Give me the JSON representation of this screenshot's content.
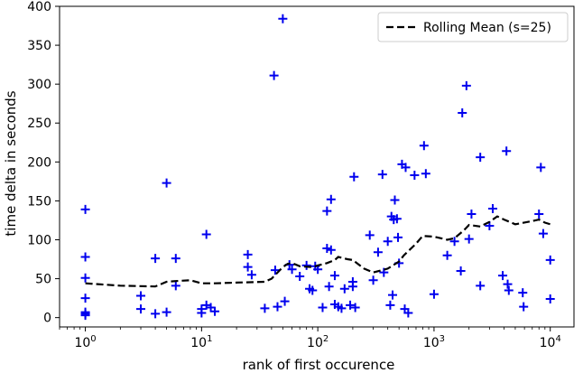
{
  "chart_data": {
    "type": "scatter",
    "title": "",
    "xlabel": "rank of first occurence",
    "ylabel": "time delta in seconds",
    "xscale": "log",
    "xlim": [
      0.6,
      16000
    ],
    "ylim": [
      -12,
      400
    ],
    "grid": false,
    "legend_position": "top-right",
    "x_ticks": [
      {
        "value": 1,
        "base": "10",
        "exp": "0"
      },
      {
        "value": 10,
        "base": "10",
        "exp": "1"
      },
      {
        "value": 100,
        "base": "10",
        "exp": "2"
      },
      {
        "value": 1000,
        "base": "10",
        "exp": "3"
      },
      {
        "value": 10000,
        "base": "10",
        "exp": "4"
      }
    ],
    "y_ticks": [
      0,
      50,
      100,
      150,
      200,
      250,
      300,
      350,
      400
    ],
    "series": [
      {
        "kind": "scatter",
        "marker": "+",
        "color": "#0000ee",
        "points": [
          [
            1,
            139
          ],
          [
            1,
            78
          ],
          [
            1,
            51
          ],
          [
            1,
            25
          ],
          [
            1,
            7
          ],
          [
            1,
            5
          ],
          [
            1,
            3
          ],
          [
            3,
            28
          ],
          [
            3,
            11
          ],
          [
            4,
            76
          ],
          [
            4,
            5
          ],
          [
            5,
            173
          ],
          [
            5,
            7
          ],
          [
            6,
            76
          ],
          [
            6,
            41
          ],
          [
            10,
            11
          ],
          [
            10,
            6
          ],
          [
            11,
            107
          ],
          [
            11,
            16
          ],
          [
            12,
            13
          ],
          [
            13,
            8
          ],
          [
            25,
            81
          ],
          [
            25,
            65
          ],
          [
            27,
            55
          ],
          [
            35,
            12
          ],
          [
            42,
            311
          ],
          [
            43,
            61
          ],
          [
            45,
            14
          ],
          [
            50,
            384
          ],
          [
            52,
            21
          ],
          [
            57,
            68
          ],
          [
            60,
            62
          ],
          [
            70,
            53
          ],
          [
            80,
            67
          ],
          [
            85,
            37
          ],
          [
            90,
            35
          ],
          [
            95,
            66
          ],
          [
            100,
            62
          ],
          [
            110,
            13
          ],
          [
            120,
            137
          ],
          [
            120,
            89
          ],
          [
            125,
            40
          ],
          [
            130,
            152
          ],
          [
            130,
            87
          ],
          [
            140,
            54
          ],
          [
            140,
            17
          ],
          [
            150,
            14
          ],
          [
            160,
            12
          ],
          [
            170,
            37
          ],
          [
            190,
            16
          ],
          [
            200,
            46
          ],
          [
            200,
            40
          ],
          [
            205,
            181
          ],
          [
            210,
            13
          ],
          [
            280,
            106
          ],
          [
            300,
            48
          ],
          [
            330,
            84
          ],
          [
            360,
            184
          ],
          [
            370,
            58
          ],
          [
            400,
            98
          ],
          [
            420,
            16
          ],
          [
            430,
            130
          ],
          [
            440,
            29
          ],
          [
            450,
            126
          ],
          [
            460,
            151
          ],
          [
            480,
            127
          ],
          [
            490,
            103
          ],
          [
            500,
            70
          ],
          [
            530,
            197
          ],
          [
            560,
            11
          ],
          [
            570,
            193
          ],
          [
            600,
            6
          ],
          [
            680,
            183
          ],
          [
            820,
            221
          ],
          [
            850,
            185
          ],
          [
            1000,
            30
          ],
          [
            1300,
            80
          ],
          [
            1500,
            98
          ],
          [
            1700,
            60
          ],
          [
            1750,
            263
          ],
          [
            1900,
            298
          ],
          [
            2000,
            101
          ],
          [
            2100,
            133
          ],
          [
            2500,
            206
          ],
          [
            2500,
            41
          ],
          [
            3000,
            118
          ],
          [
            3200,
            140
          ],
          [
            3900,
            54
          ],
          [
            4200,
            214
          ],
          [
            4300,
            43
          ],
          [
            4400,
            35
          ],
          [
            5800,
            32
          ],
          [
            5900,
            14
          ],
          [
            8000,
            133
          ],
          [
            8300,
            193
          ],
          [
            8700,
            108
          ],
          [
            10000,
            74
          ],
          [
            10000,
            24
          ]
        ]
      },
      {
        "kind": "line",
        "name": "Rolling Mean (s=25)",
        "style": "dashed",
        "color": "#000000",
        "points": [
          [
            1,
            44
          ],
          [
            2,
            41
          ],
          [
            4,
            40
          ],
          [
            5,
            46
          ],
          [
            6,
            47
          ],
          [
            8,
            48
          ],
          [
            10,
            44
          ],
          [
            13,
            44
          ],
          [
            20,
            45
          ],
          [
            35,
            46
          ],
          [
            40,
            50
          ],
          [
            50,
            65
          ],
          [
            55,
            69
          ],
          [
            60,
            70
          ],
          [
            70,
            66
          ],
          [
            90,
            65
          ],
          [
            100,
            67
          ],
          [
            120,
            70
          ],
          [
            140,
            74
          ],
          [
            150,
            78
          ],
          [
            180,
            75
          ],
          [
            200,
            74
          ],
          [
            250,
            63
          ],
          [
            300,
            58
          ],
          [
            400,
            63
          ],
          [
            500,
            72
          ],
          [
            550,
            80
          ],
          [
            700,
            95
          ],
          [
            800,
            105
          ],
          [
            1000,
            104
          ],
          [
            1300,
            100
          ],
          [
            1500,
            102
          ],
          [
            1800,
            112
          ],
          [
            2000,
            119
          ],
          [
            2500,
            117
          ],
          [
            3000,
            123
          ],
          [
            3500,
            130
          ],
          [
            4000,
            126
          ],
          [
            5000,
            120
          ],
          [
            7000,
            124
          ],
          [
            8000,
            126
          ],
          [
            9000,
            122
          ],
          [
            10000,
            120
          ]
        ]
      }
    ]
  }
}
